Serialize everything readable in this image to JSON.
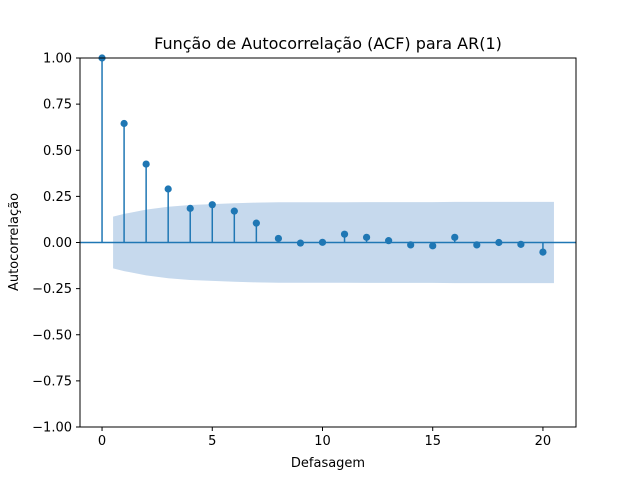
{
  "chart_data": {
    "type": "stem",
    "title": "Função de Autocorrelação (ACF) para AR(1)",
    "xlabel": "Defasagem",
    "ylabel": "Autocorrelação",
    "xlim": [
      -1,
      21.5
    ],
    "ylim": [
      -1.0,
      1.0
    ],
    "xticks": [
      0,
      5,
      10,
      15,
      20
    ],
    "yticks": [
      -1.0,
      -0.75,
      -0.5,
      -0.25,
      0.0,
      0.25,
      0.5,
      0.75,
      1.0
    ],
    "ytick_labels": [
      "−1.00",
      "−0.75",
      "−0.50",
      "−0.25",
      "0.00",
      "0.25",
      "0.50",
      "0.75",
      "1.00"
    ],
    "series": [
      {
        "lags": [
          0,
          1,
          2,
          3,
          4,
          5,
          6,
          7,
          8,
          9,
          10,
          11,
          12,
          13,
          14,
          15,
          16,
          17,
          18,
          19,
          20
        ],
        "values": [
          1.0,
          0.645,
          0.425,
          0.29,
          0.185,
          0.205,
          0.17,
          0.105,
          0.022,
          -0.003,
          0.001,
          0.045,
          0.028,
          0.01,
          -0.013,
          -0.018,
          0.028,
          -0.013,
          0.0,
          -0.01,
          -0.052
        ]
      }
    ],
    "confidence_band": {
      "lags": [
        0.5,
        1,
        2,
        3,
        4,
        5,
        6,
        7,
        8,
        9,
        10,
        11,
        12,
        13,
        14,
        15,
        16,
        17,
        18,
        19,
        20,
        20.5
      ],
      "upper": [
        0.14,
        0.155,
        0.178,
        0.194,
        0.203,
        0.208,
        0.213,
        0.216,
        0.218,
        0.218,
        0.218,
        0.218,
        0.219,
        0.219,
        0.219,
        0.219,
        0.22,
        0.22,
        0.22,
        0.22,
        0.22,
        0.22
      ]
    },
    "colors": {
      "stem": "#1f77b4",
      "band": "#c6d9ed",
      "zero_line": "#1f77b4"
    },
    "grid": false,
    "legend": "none"
  }
}
